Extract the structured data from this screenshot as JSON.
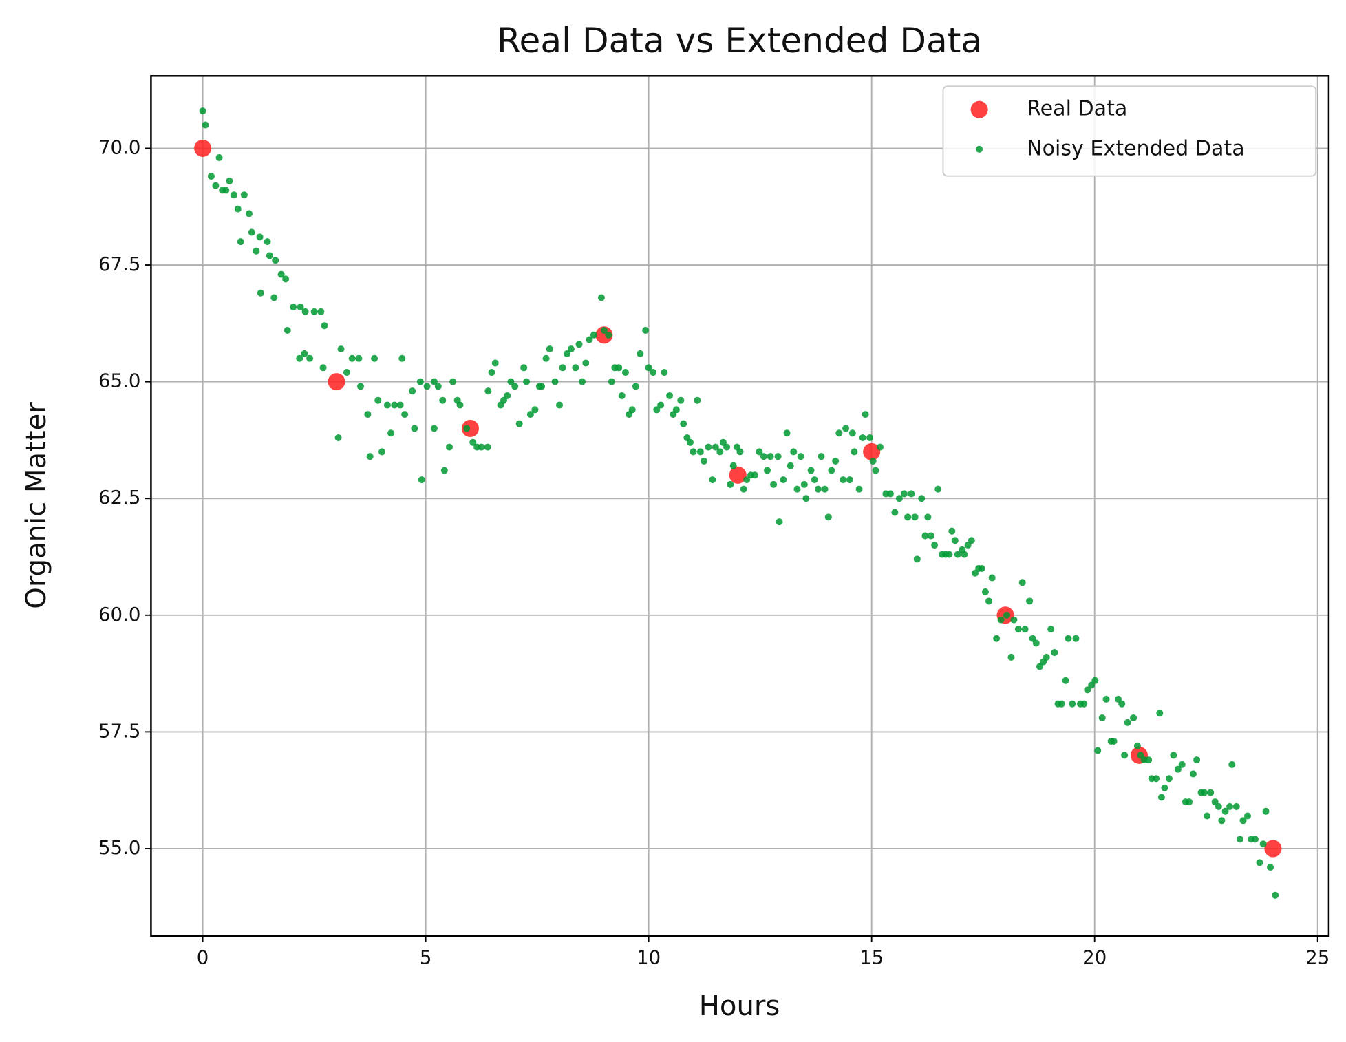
{
  "chart_data": {
    "type": "scatter",
    "title": "Real Data vs Extended Data",
    "x_label": "Hours",
    "y_label": "Organic Matter",
    "xlim": [
      -1.16,
      25.25
    ],
    "ylim": [
      53.13,
      71.55
    ],
    "xticks": [
      0,
      5,
      10,
      15,
      20,
      25
    ],
    "yticks": [
      {
        "value": 55,
        "label": "55.0"
      },
      {
        "value": 57.5,
        "label": "57.5"
      },
      {
        "value": 60,
        "label": "60.0"
      },
      {
        "value": 62.5,
        "label": "62.5"
      },
      {
        "value": 65,
        "label": "65.0"
      },
      {
        "value": 67.5,
        "label": "67.5"
      },
      {
        "value": 70,
        "label": "70.0"
      }
    ],
    "grid": true,
    "legend": "upper right",
    "series": [
      {
        "name": "Real Data",
        "color": "#ff2020",
        "x": [
          0,
          3,
          6,
          9,
          12,
          15,
          18,
          21,
          24
        ],
        "values": [
          70,
          65,
          64,
          66,
          63,
          63.5,
          60,
          57,
          55
        ]
      },
      {
        "name": "Noisy Extended Data",
        "color": "#009933",
        "x": [
          0,
          0.06,
          0.19,
          0.37,
          0.29,
          0.44,
          0.52,
          0.6,
          0.7,
          0.79,
          0.93,
          0.85,
          1.04,
          1.1,
          1.2,
          1.28,
          1.45,
          1.3,
          1.5,
          1.63,
          1.6,
          1.76,
          1.86,
          1.9,
          2.03,
          2.19,
          2.3,
          2.5,
          2.65,
          2.73,
          2.17,
          2.28,
          2.4,
          2.7,
          3.1,
          3.23,
          3.04,
          3.35,
          3.5,
          3.54,
          3.7,
          3.75,
          3.85,
          3.93,
          4.02,
          4.14,
          4.22,
          4.3,
          4.43,
          4.47,
          4.53,
          4.7,
          4.75,
          4.88,
          4.91,
          5.03,
          5.19,
          5.19,
          5.28,
          5.38,
          5.42,
          5.53,
          5.61,
          5.71,
          5.77,
          5.92,
          6.06,
          6.15,
          6.25,
          6.39,
          6.4,
          6.48,
          6.56,
          6.68,
          6.75,
          6.83,
          6.91,
          7.0,
          7.1,
          7.2,
          7.26,
          7.35,
          7.45,
          7.55,
          7.6,
          7.7,
          7.78,
          7.9,
          8.0,
          8.07,
          8.17,
          8.26,
          8.36,
          8.44,
          8.51,
          8.59,
          8.67,
          8.77,
          8.94,
          9.0,
          9.1,
          9.17,
          9.24,
          9.33,
          9.4,
          9.48,
          9.56,
          9.63,
          9.71,
          9.81,
          9.93,
          10.0,
          10.1,
          10.18,
          10.27,
          10.35,
          10.47,
          10.55,
          10.62,
          10.72,
          10.78,
          10.86,
          10.93,
          11.0,
          11.09,
          11.16,
          11.24,
          11.34,
          11.43,
          11.5,
          11.6,
          11.67,
          11.75,
          11.83,
          11.9,
          11.98,
          12.05,
          12.13,
          12.2,
          12.29,
          12.38,
          12.48,
          12.58,
          12.66,
          12.73,
          12.8,
          12.9,
          12.93,
          13.02,
          13.1,
          13.18,
          13.25,
          13.33,
          13.41,
          13.49,
          13.53,
          13.64,
          13.72,
          13.8,
          13.87,
          13.95,
          14.03,
          14.1,
          14.19,
          14.27,
          14.36,
          14.42,
          14.51,
          14.57,
          14.61,
          14.72,
          14.8,
          14.86,
          14.96,
          15.03,
          15.09,
          15.19,
          15.32,
          15.42,
          15.52,
          15.62,
          15.73,
          15.81,
          15.89,
          15.97,
          16.02,
          16.12,
          16.2,
          16.26,
          16.33,
          16.41,
          16.49,
          16.58,
          16.66,
          16.74,
          16.8,
          16.87,
          16.93,
          17.03,
          17.08,
          17.16,
          17.24,
          17.32,
          17.4,
          17.47,
          17.55,
          17.63,
          17.7,
          17.8,
          17.9,
          18.03,
          18.13,
          18.19,
          18.29,
          18.38,
          18.44,
          18.54,
          18.61,
          18.69,
          18.77,
          18.85,
          18.92,
          19.02,
          19.1,
          19.18,
          19.26,
          19.35,
          19.41,
          19.5,
          19.58,
          19.68,
          19.76,
          19.84,
          19.93,
          20.01,
          20.07,
          20.17,
          20.26,
          20.37,
          20.43,
          20.53,
          20.61,
          20.67,
          20.74,
          20.87,
          20.96,
          21.03,
          21.11,
          21.21,
          21.28,
          21.38,
          21.46,
          21.5,
          21.57,
          21.67,
          21.77,
          21.87,
          21.96,
          22.04,
          22.12,
          22.21,
          22.29,
          22.39,
          22.46,
          22.52,
          22.6,
          22.7,
          22.78,
          22.85,
          22.93,
          23.03,
          23.08,
          23.18,
          23.26,
          23.33,
          23.43,
          23.51,
          23.6,
          23.7,
          23.78,
          23.84,
          23.94,
          24.05
        ],
        "values": [
          70.8,
          70.5,
          69.4,
          69.8,
          69.2,
          69.1,
          69.1,
          69.3,
          69.0,
          68.7,
          69.0,
          68.0,
          68.6,
          68.2,
          67.8,
          68.1,
          68.0,
          66.9,
          67.7,
          67.6,
          66.8,
          67.3,
          67.2,
          66.1,
          66.6,
          66.6,
          66.5,
          66.5,
          66.5,
          66.2,
          65.5,
          65.6,
          65.5,
          65.3,
          65.7,
          65.2,
          63.8,
          65.5,
          65.5,
          64.9,
          64.3,
          63.4,
          65.5,
          64.6,
          63.5,
          64.5,
          63.9,
          64.5,
          64.5,
          65.5,
          64.3,
          64.8,
          64.0,
          65.0,
          62.9,
          64.9,
          65.0,
          64.0,
          64.9,
          64.6,
          63.1,
          63.6,
          65.0,
          64.6,
          64.5,
          64.0,
          63.7,
          63.6,
          63.6,
          63.6,
          64.8,
          65.2,
          65.4,
          64.5,
          64.6,
          64.7,
          65.0,
          64.9,
          64.1,
          65.3,
          65.0,
          64.3,
          64.4,
          64.9,
          64.9,
          65.5,
          65.7,
          65.0,
          64.5,
          65.3,
          65.6,
          65.7,
          65.3,
          65.8,
          65.0,
          65.4,
          65.9,
          66.0,
          66.8,
          66.1,
          66.0,
          65.0,
          65.3,
          65.3,
          64.7,
          65.2,
          64.3,
          64.4,
          64.9,
          65.6,
          66.1,
          65.3,
          65.2,
          64.4,
          64.5,
          65.2,
          64.7,
          64.3,
          64.4,
          64.6,
          64.1,
          63.8,
          63.7,
          63.5,
          64.6,
          63.5,
          63.3,
          63.6,
          62.9,
          63.6,
          63.5,
          63.7,
          63.6,
          62.8,
          63.2,
          63.6,
          63.5,
          62.7,
          62.9,
          63.0,
          63.0,
          63.5,
          63.4,
          63.1,
          63.4,
          62.8,
          63.4,
          62.0,
          62.9,
          63.9,
          63.2,
          63.5,
          62.7,
          63.4,
          62.8,
          62.5,
          63.1,
          62.9,
          62.7,
          63.4,
          62.7,
          62.1,
          63.1,
          63.3,
          63.9,
          62.9,
          64.0,
          62.9,
          63.9,
          63.5,
          62.7,
          63.8,
          64.3,
          63.8,
          63.3,
          63.1,
          63.6,
          62.6,
          62.6,
          62.2,
          62.5,
          62.6,
          62.1,
          62.6,
          62.1,
          61.2,
          62.5,
          61.7,
          62.1,
          61.7,
          61.5,
          62.7,
          61.3,
          61.3,
          61.3,
          61.8,
          61.6,
          61.3,
          61.4,
          61.3,
          61.5,
          61.6,
          60.9,
          61.0,
          61.0,
          60.5,
          60.3,
          60.8,
          59.5,
          59.9,
          60.0,
          59.1,
          59.9,
          59.7,
          60.7,
          59.7,
          60.3,
          59.5,
          59.4,
          58.9,
          59.0,
          59.1,
          59.7,
          59.2,
          58.1,
          58.1,
          58.6,
          59.5,
          58.1,
          59.5,
          58.1,
          58.1,
          58.4,
          58.5,
          58.6,
          57.1,
          57.8,
          58.2,
          57.3,
          57.3,
          58.2,
          58.1,
          57.0,
          57.7,
          57.8,
          57.2,
          57.0,
          56.9,
          56.9,
          56.5,
          56.5,
          57.9,
          56.1,
          56.3,
          56.5,
          57.0,
          56.7,
          56.8,
          56.0,
          56.0,
          56.6,
          56.9,
          56.2,
          56.2,
          55.7,
          56.2,
          56.0,
          55.9,
          55.6,
          55.8,
          55.9,
          56.8,
          55.9,
          55.2,
          55.6,
          55.7,
          55.2,
          55.2,
          54.7,
          55.1,
          55.8,
          54.6,
          54.0
        ]
      }
    ]
  }
}
